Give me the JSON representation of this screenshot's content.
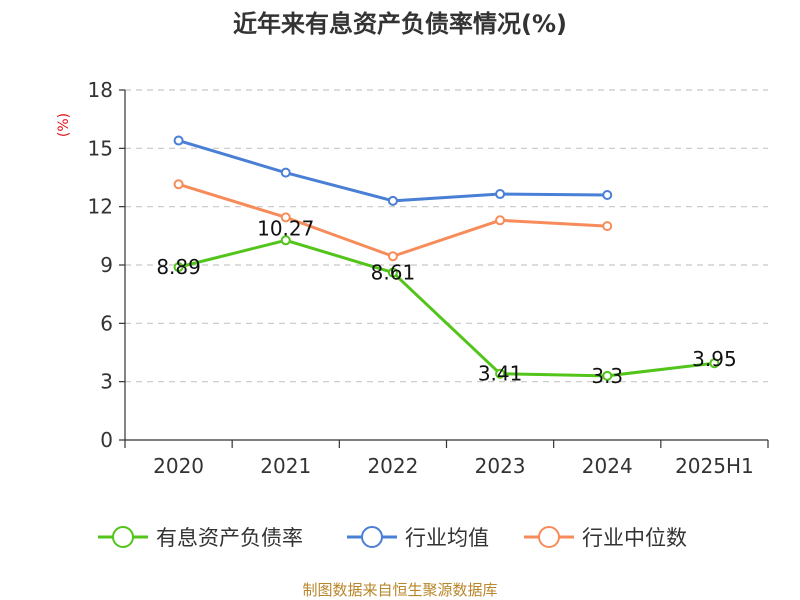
{
  "chart_data": {
    "type": "line",
    "title": "近年来有息资产负债率情况(%)",
    "ylabel": "(%)",
    "xlabel": "",
    "categories": [
      "2020",
      "2021",
      "2022",
      "2023",
      "2024",
      "2025H1"
    ],
    "ylim": [
      0,
      18
    ],
    "yticks": [
      0,
      3,
      6,
      9,
      12,
      15,
      18
    ],
    "grid": true,
    "legend_position": "bottom",
    "series": [
      {
        "name": "有息资产负债率",
        "color": "#52c41a",
        "values": [
          8.89,
          10.27,
          8.61,
          3.41,
          3.3,
          3.95
        ],
        "labels": [
          "8.89",
          "10.27",
          "8.61",
          "3.41",
          "3.3",
          "3.95"
        ]
      },
      {
        "name": "行业均值",
        "color": "#4a7fd6",
        "values": [
          15.4,
          13.75,
          12.3,
          12.65,
          12.6,
          null
        ]
      },
      {
        "name": "行业中位数",
        "color": "#f78c5a",
        "values": [
          13.15,
          11.45,
          9.45,
          11.3,
          11.0,
          null
        ]
      }
    ],
    "source": "制图数据来自恒生聚源数据库"
  }
}
